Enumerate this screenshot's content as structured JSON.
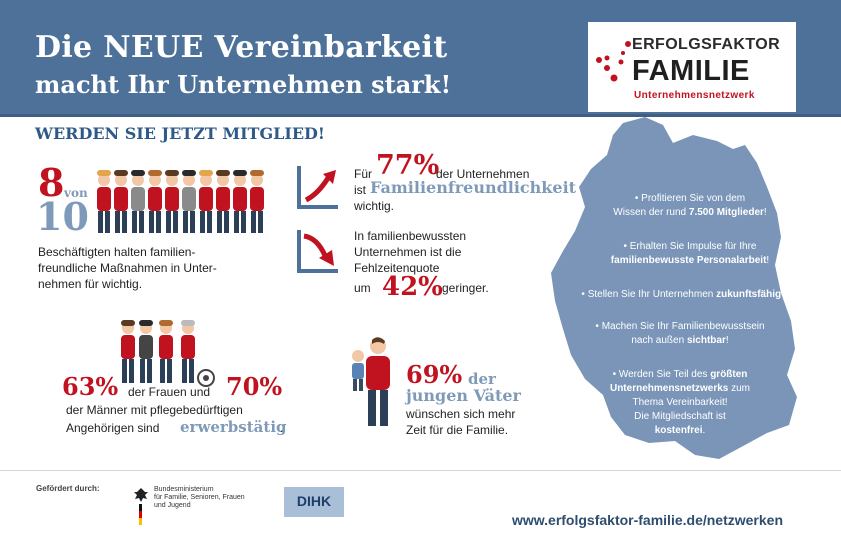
{
  "header": {
    "title_line1": "Die NEUE Vereinbarkeit",
    "title_line2": "macht Ihr Unternehmen stark!"
  },
  "logo": {
    "line1": "ERFOLGSFAKTOR",
    "line2": "FAMILIE",
    "line3": "Unternehmensnetzwerk"
  },
  "cta": "WERDEN SIE JETZT MITGLIED!",
  "stat1": {
    "num": "8",
    "von": "von",
    "total": "10",
    "lines": [
      "Beschäftigten halten familien-",
      "freundliche Maßnahmen in Unter-",
      "nehmen für wichtig."
    ]
  },
  "stat2": {
    "pre": "Für",
    "num": "77%",
    "post": "der Unternehmen",
    "ist": "ist",
    "highlight": "Familienfreundlichkeit",
    "end": "wichtig."
  },
  "stat3": {
    "lines": [
      "In familienbewussten",
      "Unternehmen ist die",
      "Fehlzeitenquote"
    ],
    "um": "um",
    "num": "42%",
    "end": "geringer."
  },
  "stat4": {
    "num1": "63%",
    "mid": "der Frauen und",
    "num2": "70%",
    "line2": "der Männer mit pflegebedürftigen",
    "line3_pre": "Angehörigen sind",
    "highlight": "erwerbstätig",
    "dot": "."
  },
  "stat5": {
    "num": "69%",
    "der": "der",
    "highlight": "jungen Väter",
    "line3": "wünschen sich mehr",
    "line4": "Zeit für die Familie."
  },
  "map": {
    "items": [
      {
        "l1": "• Profitieren Sie von dem",
        "l2_pre": "Wissen der rund ",
        "l2_b": "7.500 Mitglieder",
        "l2_post": "!"
      },
      {
        "l1": "• Erhalten Sie Impulse für Ihre",
        "l2_pre": "",
        "l2_b": "familienbewusste Personalarbeit",
        "l2_post": "!"
      },
      {
        "l1_pre": "• Stellen Sie Ihr Unternehmen ",
        "l1_b": "zukunftsfähig",
        "l1_post": " auf!"
      },
      {
        "l1": "• Machen Sie Ihr Familienbewusstsein",
        "l2_pre": "nach außen ",
        "l2_b": "sichtbar",
        "l2_post": "!"
      },
      {
        "l1_pre": "• Werden Sie Teil des ",
        "l1_b": "größten",
        "l2_b": "Unternehmensnetzwerks",
        "l2_post": " zum",
        "l3": "Thema Vereinbarkeit!",
        "l4": "Die Mitgliedschaft ist",
        "l5_b": "kostenfrei",
        "l5_post": "."
      }
    ]
  },
  "footer": {
    "gefoerdert": "Gefördert durch:",
    "ministry": [
      "Bundesministerium",
      "für Familie, Senioren, Frauen",
      "und Jugend"
    ],
    "dihk": "DIHK",
    "url": "www.erfolgsfaktor-familie.de/netzwerken"
  },
  "colors": {
    "header_blue": "#4d7198",
    "accent_red": "#c1121f",
    "light_blue": "#7f9ab8",
    "map_blue": "#7a95b8"
  }
}
